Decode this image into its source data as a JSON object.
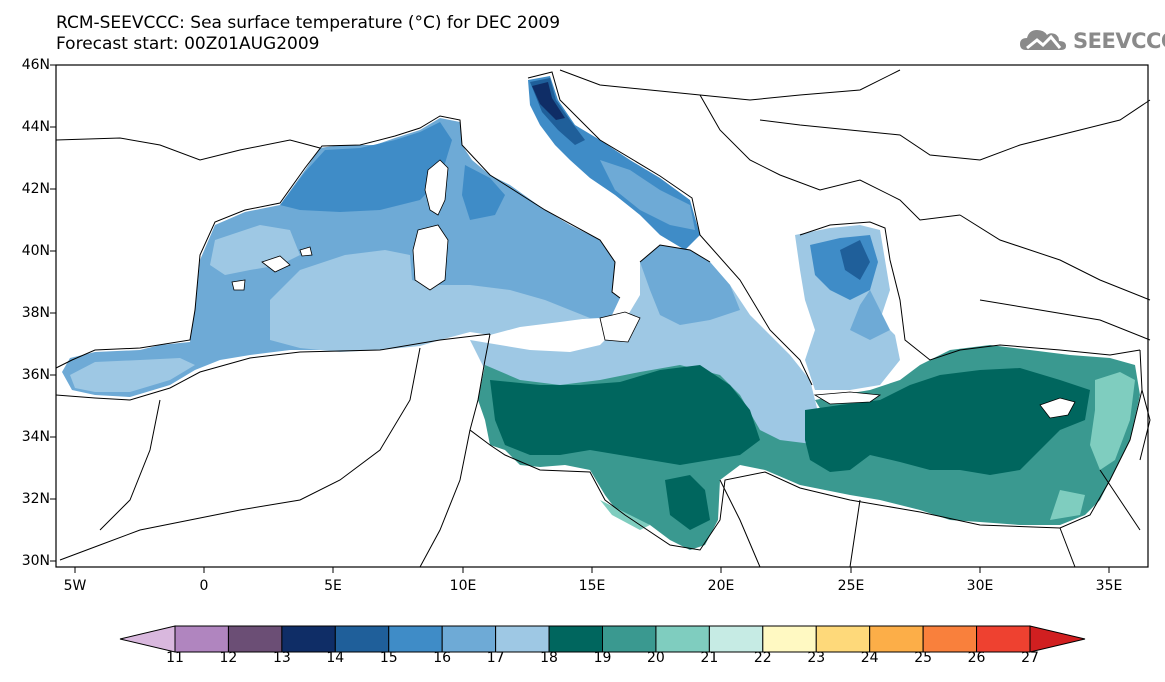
{
  "title_line1": "RCM-SEEVCCC: Sea surface temperature (°C) for DEC 2009",
  "title_line2": "Forecast start: 00Z01AUG2009",
  "logo_text": "SEEVCCC",
  "lat_labels": [
    "46N",
    "44N",
    "42N",
    "40N",
    "38N",
    "36N",
    "34N",
    "32N",
    "30N"
  ],
  "lon_labels": [
    "5W",
    "0",
    "5E",
    "10E",
    "15E",
    "20E",
    "25E",
    "30E",
    "35E"
  ],
  "colorbar": {
    "labels": [
      "11",
      "12",
      "13",
      "14",
      "15",
      "16",
      "17",
      "18",
      "19",
      "20",
      "21",
      "22",
      "23",
      "24",
      "25",
      "26",
      "27"
    ],
    "colors": [
      "#d9b8de",
      "#b085bf",
      "#6b4e75",
      "#0f2d66",
      "#1f5f9a",
      "#3f8cc7",
      "#6eaad6",
      "#9ec8e4",
      "#00665e",
      "#3a9990",
      "#7fcdbf",
      "#c6ebe4",
      "#fff9c2",
      "#fed97a",
      "#fcae48",
      "#f9803c",
      "#ee4130",
      "#d11f20"
    ]
  },
  "legend_colors": {
    "sst_18": "#9ec8e4",
    "sst_17": "#6eaad6",
    "sst_16": "#3f8cc7",
    "sst_15": "#1f5f9a",
    "sst_14": "#0f2d66",
    "sst_19": "#00665e",
    "sst_20": "#3a9990",
    "sst_21": "#7fcdbf"
  }
}
